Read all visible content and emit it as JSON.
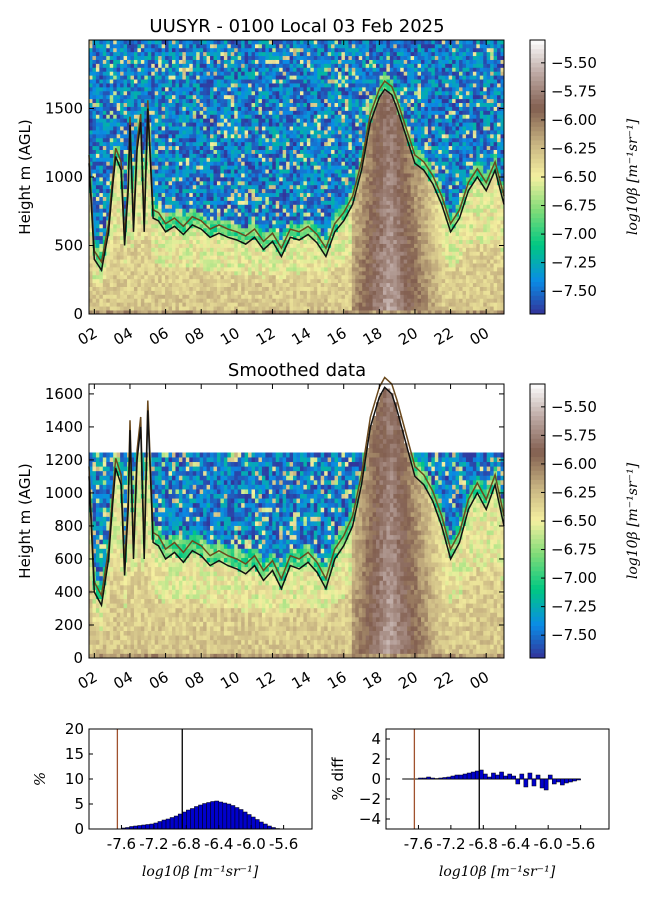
{
  "chart_data": [
    {
      "type": "heatmap",
      "title": "UUSYR - 0100 Local 03 Feb 2025",
      "ylabel": "Height m (AGL)",
      "xlabel": "",
      "ylim": [
        0,
        2000
      ],
      "x_ticks": [
        "02",
        "04",
        "06",
        "08",
        "10",
        "12",
        "14",
        "16",
        "18",
        "20",
        "22",
        "00"
      ],
      "x_hours": [
        2,
        4,
        6,
        8,
        10,
        12,
        14,
        16,
        18,
        20,
        22,
        24
      ],
      "x_range_hours": [
        1.7,
        25.0
      ],
      "y_ticks": [
        0,
        500,
        1000,
        1500
      ],
      "colorbar": {
        "label": "log10β [m⁻¹sr⁻¹]",
        "range": [
          -7.7,
          -5.3
        ],
        "ticks": [
          "−5.50",
          "−5.75",
          "−6.00",
          "−6.25",
          "−6.50",
          "−6.75",
          "−7.00",
          "−7.25",
          "−7.50"
        ],
        "tick_values": [
          -5.5,
          -5.75,
          -6.0,
          -6.25,
          -6.5,
          -6.75,
          -7.0,
          -7.25,
          -7.5
        ]
      },
      "cloud_base_line": {
        "hours": [
          1.7,
          2.0,
          2.4,
          2.8,
          3.0,
          3.2,
          3.5,
          3.7,
          3.9,
          4.0,
          4.2,
          4.4,
          4.6,
          4.8,
          5.0,
          5.3,
          5.6,
          6.0,
          6.5,
          7.0,
          7.5,
          8.0,
          8.5,
          9.0,
          9.5,
          10.0,
          10.5,
          11.0,
          11.5,
          12.0,
          12.5,
          13.0,
          13.5,
          14.0,
          14.5,
          15.0,
          15.5,
          16.0,
          16.5,
          17.0,
          17.5,
          18.0,
          18.3,
          18.7,
          19.0,
          19.5,
          20.0,
          20.5,
          21.0,
          21.5,
          22.0,
          22.5,
          23.0,
          23.5,
          24.0,
          24.5,
          25.0
        ],
        "heights": [
          1100,
          400,
          320,
          600,
          900,
          1150,
          1050,
          500,
          900,
          1380,
          600,
          1200,
          1400,
          600,
          1500,
          700,
          680,
          600,
          640,
          580,
          650,
          620,
          560,
          590,
          560,
          540,
          510,
          560,
          470,
          530,
          420,
          560,
          540,
          580,
          520,
          420,
          600,
          680,
          800,
          1050,
          1400,
          1580,
          1640,
          1600,
          1500,
          1300,
          1100,
          1050,
          950,
          800,
          600,
          700,
          900,
          1000,
          900,
          1050,
          800
        ]
      }
    },
    {
      "type": "heatmap",
      "title": "Smoothed data",
      "ylabel": "Height m (AGL)",
      "xlabel": "",
      "ylim": [
        0,
        1660
      ],
      "x_ticks": [
        "02",
        "04",
        "06",
        "08",
        "10",
        "12",
        "14",
        "16",
        "18",
        "20",
        "22",
        "00"
      ],
      "y_ticks": [
        0,
        200,
        400,
        600,
        800,
        1000,
        1200,
        1400,
        1600
      ],
      "colorbar": {
        "label": "log10β [m⁻¹sr⁻¹]",
        "range": [
          -7.7,
          -5.3
        ],
        "ticks": [
          "−5.50",
          "−5.75",
          "−6.00",
          "−6.25",
          "−6.50",
          "−6.75",
          "−7.00",
          "−7.25",
          "−7.50"
        ],
        "tick_values": [
          -5.5,
          -5.75,
          -6.0,
          -6.25,
          -6.5,
          -6.75,
          -7.0,
          -7.25,
          -7.5
        ]
      }
    },
    {
      "type": "bar",
      "ylabel": "%",
      "xlabel": "log10β [m⁻¹sr⁻¹]",
      "ylim": [
        0,
        20
      ],
      "xlim": [
        -8.0,
        -5.25
      ],
      "x_ticks": [
        "-7.6",
        "-7.2",
        "-6.8",
        "-6.4",
        "-6.0",
        "-5.6"
      ],
      "x_tick_values": [
        -7.6,
        -7.2,
        -6.8,
        -6.4,
        -6.0,
        -5.6
      ],
      "y_ticks": [
        0,
        5,
        10,
        15,
        20
      ],
      "vlines": [
        {
          "x": -7.65,
          "color": "#a0522d"
        },
        {
          "x": -6.85,
          "color": "#000000"
        }
      ],
      "bins": [
        -7.6,
        -7.55,
        -7.5,
        -7.45,
        -7.4,
        -7.35,
        -7.3,
        -7.25,
        -7.2,
        -7.15,
        -7.1,
        -7.05,
        -7.0,
        -6.95,
        -6.9,
        -6.85,
        -6.8,
        -6.75,
        -6.7,
        -6.65,
        -6.6,
        -6.55,
        -6.5,
        -6.45,
        -6.4,
        -6.35,
        -6.3,
        -6.25,
        -6.2,
        -6.15,
        -6.1,
        -6.05,
        -6.0,
        -5.95,
        -5.9,
        -5.85,
        -5.8,
        -5.75,
        -5.7,
        -5.65
      ],
      "values": [
        0.2,
        0.3,
        0.5,
        0.6,
        0.7,
        0.8,
        0.9,
        1.0,
        1.2,
        1.5,
        1.8,
        2.0,
        2.3,
        2.6,
        3.0,
        3.4,
        3.8,
        4.1,
        4.5,
        4.8,
        5.1,
        5.3,
        5.5,
        5.6,
        5.4,
        5.2,
        5.0,
        4.7,
        4.3,
        3.9,
        3.4,
        2.9,
        2.4,
        1.9,
        1.4,
        1.0,
        0.6,
        0.3,
        0.1,
        0.05
      ]
    },
    {
      "type": "bar",
      "ylabel": "% diff",
      "xlabel": "log10β [m⁻¹sr⁻¹]",
      "ylim": [
        -5,
        5
      ],
      "xlim": [
        -8.0,
        -5.25
      ],
      "x_ticks": [
        "-7.6",
        "-7.2",
        "-6.8",
        "-6.4",
        "-6.0",
        "-5.6"
      ],
      "x_tick_values": [
        -7.6,
        -7.2,
        -6.8,
        -6.4,
        -6.0,
        -5.6
      ],
      "y_ticks": [
        "4",
        "2",
        "0",
        "−2",
        "−4"
      ],
      "y_tick_values": [
        4,
        2,
        0,
        -2,
        -4
      ],
      "baseline_range": [
        -7.8,
        -5.6
      ],
      "vlines": [
        {
          "x": -7.65,
          "color": "#a0522d"
        },
        {
          "x": -6.85,
          "color": "#000000"
        }
      ],
      "bins": [
        -7.6,
        -7.55,
        -7.5,
        -7.45,
        -7.4,
        -7.35,
        -7.3,
        -7.25,
        -7.2,
        -7.15,
        -7.1,
        -7.05,
        -7.0,
        -6.95,
        -6.9,
        -6.85,
        -6.8,
        -6.75,
        -6.7,
        -6.65,
        -6.6,
        -6.55,
        -6.5,
        -6.45,
        -6.4,
        -6.35,
        -6.3,
        -6.25,
        -6.2,
        -6.15,
        -6.1,
        -6.05,
        -6.0,
        -5.95,
        -5.9,
        -5.85,
        -5.8,
        -5.75,
        -5.7,
        -5.65
      ],
      "values": [
        0.1,
        0.1,
        0.2,
        0.1,
        0.05,
        0.1,
        0.15,
        0.2,
        0.3,
        0.4,
        0.4,
        0.5,
        0.6,
        0.7,
        0.8,
        0.9,
        0.5,
        0.2,
        0.6,
        0.4,
        0.7,
        0.3,
        0.5,
        0.3,
        -0.5,
        0.5,
        -0.8,
        0.6,
        -0.7,
        0.4,
        -0.9,
        -1.1,
        0.4,
        -0.5,
        -0.3,
        -0.6,
        -0.4,
        -0.3,
        -0.2,
        -0.1
      ]
    }
  ]
}
